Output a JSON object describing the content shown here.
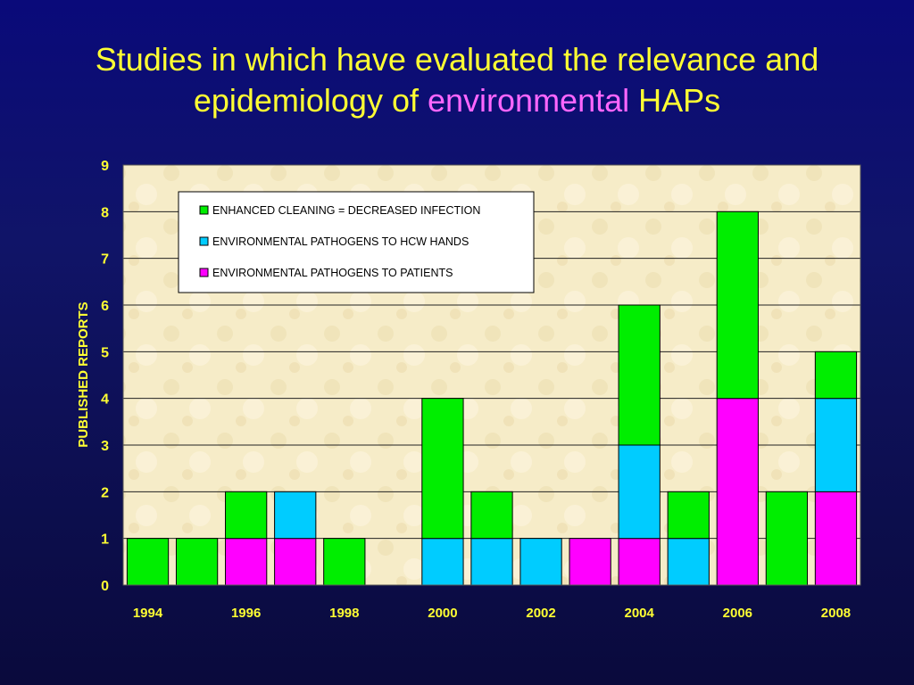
{
  "slide": {
    "title_line1": "Studies in which have evaluated the relevance and",
    "title_line2_prefix": "epidemiology of",
    "title_line2_highlight": "environmental",
    "title_line2_suffix": "HAPs"
  },
  "colors": {
    "title_text": "#ffff33",
    "title_highlight": "#ff66ff",
    "axis_text": "#ffff33",
    "plot_background": "#f6ecc8",
    "enhanced_cleaning": "#00ee00",
    "hcw_hands": "#00ccff",
    "patients": "#ff00ff"
  },
  "chart_data": {
    "type": "bar",
    "stacked": true,
    "categories": [
      "1994",
      "1995",
      "1996",
      "1997",
      "1998",
      "1999",
      "2000",
      "2001",
      "2002",
      "2003",
      "2004",
      "2005",
      "2006",
      "2007",
      "2008"
    ],
    "tick_labels": [
      "1994",
      "",
      "1996",
      "",
      "1998",
      "",
      "2000",
      "",
      "2002",
      "",
      "2004",
      "",
      "2006",
      "",
      "2008"
    ],
    "series": [
      {
        "name": "ENVIRONMENTAL PATHOGENS TO PATIENTS",
        "color": "#ff00ff",
        "values": [
          0,
          0,
          1,
          1,
          0,
          0,
          0,
          0,
          0,
          1,
          1,
          0,
          4,
          0,
          2
        ]
      },
      {
        "name": "ENVIRONMENTAL PATHOGENS TO HCW HANDS",
        "color": "#00ccff",
        "values": [
          0,
          0,
          0,
          1,
          0,
          0,
          1,
          1,
          1,
          0,
          2,
          1,
          0,
          0,
          2
        ]
      },
      {
        "name": "ENHANCED CLEANING = DECREASED INFECTION",
        "color": "#00ee00",
        "values": [
          1,
          1,
          1,
          0,
          1,
          0,
          3,
          1,
          0,
          0,
          3,
          1,
          4,
          2,
          1
        ]
      }
    ],
    "legend_order": [
      "ENHANCED CLEANING = DECREASED INFECTION",
      "ENVIRONMENTAL PATHOGENS TO HCW HANDS",
      "ENVIRONMENTAL PATHOGENS TO PATIENTS"
    ],
    "legend_position": "top-left",
    "xlabel": "",
    "ylabel": "PUBLISHED REPORTS",
    "ylim": [
      0,
      9
    ],
    "yticks": [
      "0",
      "1",
      "2",
      "3",
      "4",
      "5",
      "6",
      "7",
      "8",
      "9"
    ],
    "grid": true
  }
}
